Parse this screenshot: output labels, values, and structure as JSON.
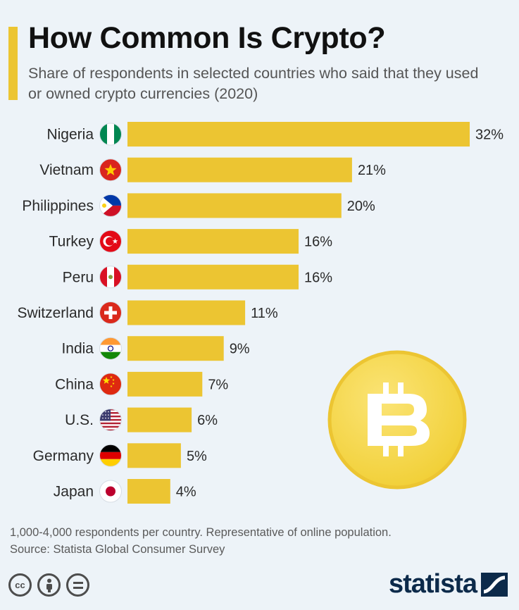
{
  "header": {
    "title": "How Common Is Crypto?",
    "subtitle": "Share of respondents in selected countries who said that they used or owned crypto currencies (2020)"
  },
  "chart_data": {
    "type": "bar",
    "orientation": "horizontal",
    "categories": [
      "Nigeria",
      "Vietnam",
      "Philippines",
      "Turkey",
      "Peru",
      "Switzerland",
      "India",
      "China",
      "U.S.",
      "Germany",
      "Japan"
    ],
    "values": [
      32,
      21,
      20,
      16,
      16,
      11,
      9,
      7,
      6,
      5,
      4
    ],
    "value_labels": [
      "32%",
      "21%",
      "20%",
      "16%",
      "16%",
      "11%",
      "9%",
      "7%",
      "6%",
      "5%",
      "4%"
    ],
    "flags": [
      "nigeria-flag-icon",
      "vietnam-flag-icon",
      "philippines-flag-icon",
      "turkey-flag-icon",
      "peru-flag-icon",
      "switzerland-flag-icon",
      "india-flag-icon",
      "china-flag-icon",
      "us-flag-icon",
      "germany-flag-icon",
      "japan-flag-icon"
    ],
    "xlim": [
      0,
      32
    ],
    "grid": false,
    "bar_color": "#ecc532"
  },
  "decoration": {
    "coin_icon": "bitcoin-coin-icon",
    "coin_color": "#f7db4d"
  },
  "footer": {
    "note": "1,000-4,000 respondents per country. Representative of online population.",
    "source": "Source: Statista Global Consumer Survey",
    "license_icons": [
      "cc-icon",
      "attribution-icon",
      "no-derivatives-icon"
    ],
    "brand": "statista",
    "brand_icon": "statista-logo-icon"
  }
}
